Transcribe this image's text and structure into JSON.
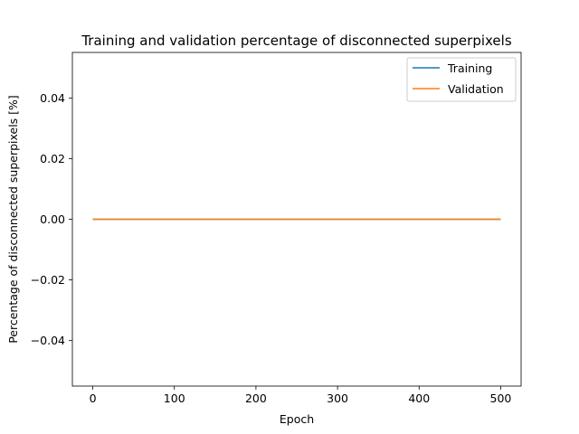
{
  "chart_data": {
    "type": "line",
    "title": "Training and validation percentage of disconnected superpixels",
    "xlabel": "Epoch",
    "ylabel": "Percentage of disconnected superpixels [%]",
    "xlim": [
      -25,
      525
    ],
    "ylim": [
      -0.055,
      0.055
    ],
    "xticks": [
      0,
      100,
      200,
      300,
      400,
      500
    ],
    "yticks": [
      -0.04,
      -0.02,
      0.0,
      0.02,
      0.04
    ],
    "xtick_labels": [
      "0",
      "100",
      "200",
      "300",
      "400",
      "500"
    ],
    "ytick_labels": [
      "−0.04",
      "−0.02",
      "0.00",
      "0.02",
      "0.04"
    ],
    "grid": false,
    "legend_position": "upper right",
    "series": [
      {
        "name": "Training",
        "color": "#1f77b4",
        "x": [
          0,
          500
        ],
        "y": [
          0.0,
          0.0
        ]
      },
      {
        "name": "Validation",
        "color": "#ff7f0e",
        "x": [
          0,
          500
        ],
        "y": [
          0.0,
          0.0
        ]
      }
    ]
  }
}
